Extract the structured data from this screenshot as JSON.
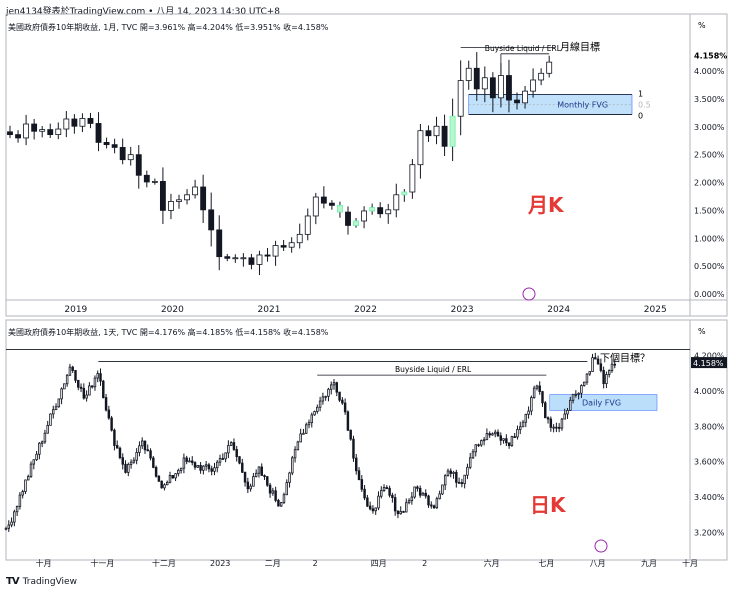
{
  "header": {
    "publisher": "jen4134發表於TradingView.com • 八月 14, 2023 14:30 UTC+8"
  },
  "footer": {
    "brand": "TradingView"
  },
  "colors": {
    "up": "#ffffff",
    "down": "#131722",
    "edge": "#131722",
    "fvg_fill": "#bbdefb",
    "fvg_edge": "#2962ff",
    "label_red": "#e53935",
    "mint": "#b9f6ca",
    "grid": "#e0e3eb",
    "axis_text": "#131722"
  },
  "chart_data": [
    {
      "type": "candlestick",
      "timeframe": "monthly",
      "legend": "美國政府債券10年期收益, 1月, TVC  開=3.961%  高=4.204%  低=3.951%  收=4.158%",
      "label": "月K",
      "percent_unit": "%",
      "ylim": [
        0,
        4.5
      ],
      "y_ticks": [
        "0.000%",
        "0.500%",
        "1.000%",
        "1.500%",
        "2.000%",
        "2.500%",
        "3.000%",
        "3.500%",
        "4.000%"
      ],
      "y_tick_values": [
        0,
        0.5,
        1.0,
        1.5,
        2.0,
        2.5,
        3.0,
        3.5,
        4.0
      ],
      "last_price": "4.158%",
      "last_value": 4.158,
      "x_ticks": [
        "2019",
        "2020",
        "2021",
        "2022",
        "2023",
        "2024",
        "2025"
      ],
      "x_tick_index": [
        8,
        20,
        32,
        44,
        56,
        68,
        80
      ],
      "closes": [
        2.86,
        2.8,
        3.05,
        2.92,
        2.95,
        2.86,
        2.96,
        3.14,
        3.01,
        3.15,
        3.06,
        2.72,
        2.68,
        2.63,
        2.41,
        2.5,
        2.13,
        2.01,
        2.02,
        1.5,
        1.66,
        1.69,
        1.78,
        1.92,
        1.51,
        1.15,
        0.67,
        0.64,
        0.65,
        0.65,
        0.53,
        0.7,
        0.68,
        0.87,
        0.84,
        0.92,
        1.07,
        1.4,
        1.74,
        1.63,
        1.59,
        1.47,
        1.23,
        1.31,
        1.49,
        1.55,
        1.44,
        1.51,
        1.78,
        1.83,
        2.32,
        2.93,
        2.84,
        3.01,
        2.65,
        3.19,
        3.83,
        4.05,
        3.68,
        3.88,
        3.52,
        3.92,
        3.48,
        3.43,
        3.64,
        3.84,
        3.96,
        4.16
      ],
      "max_index": 84,
      "annotations": {
        "buyside": "Buyside Liquid / ERL",
        "target": "月線目標",
        "fvg": "Monthly FVG",
        "fib_1": "1",
        "fib_05": "0.5",
        "fib_0": "0",
        "fvg_top": 3.58,
        "fvg_bottom": 3.22,
        "buyside_level": 4.31
      }
    },
    {
      "type": "candlestick",
      "timeframe": "daily",
      "legend": "美國政府債券10年期收益, 1天, TVC  開=4.176%  高=4.185%  低=4.158%  收=4.158%",
      "label": "日K",
      "percent_unit": "%",
      "ylim": [
        3.1,
        4.3
      ],
      "y_ticks": [
        "3.200%",
        "3.400%",
        "3.600%",
        "3.800%",
        "4.000%",
        "4.200%"
      ],
      "y_tick_values": [
        3.2,
        3.4,
        3.6,
        3.8,
        4.0,
        4.2
      ],
      "last_price": "4.158%",
      "last_value": 4.158,
      "x_ticks": [
        "十月",
        "十一月",
        "十二月",
        "2023",
        "二月",
        "2",
        "四月",
        "2",
        "六月",
        "七月",
        "八月",
        "九月",
        "十月"
      ],
      "x_tick_frac": [
        0.055,
        0.135,
        0.225,
        0.31,
        0.39,
        0.46,
        0.545,
        0.62,
        0.71,
        0.79,
        0.865,
        0.94,
        1.0
      ],
      "anchors": [
        [
          0,
          3.2
        ],
        [
          0.035,
          3.55
        ],
        [
          0.07,
          3.9
        ],
        [
          0.095,
          4.15
        ],
        [
          0.115,
          3.95
        ],
        [
          0.135,
          4.12
        ],
        [
          0.155,
          3.75
        ],
        [
          0.175,
          3.55
        ],
        [
          0.2,
          3.7
        ],
        [
          0.23,
          3.45
        ],
        [
          0.26,
          3.6
        ],
        [
          0.3,
          3.55
        ],
        [
          0.33,
          3.7
        ],
        [
          0.355,
          3.45
        ],
        [
          0.37,
          3.55
        ],
        [
          0.4,
          3.35
        ],
        [
          0.43,
          3.75
        ],
        [
          0.455,
          3.92
        ],
        [
          0.48,
          4.05
        ],
        [
          0.495,
          3.9
        ],
        [
          0.51,
          3.6
        ],
        [
          0.53,
          3.3
        ],
        [
          0.555,
          3.45
        ],
        [
          0.575,
          3.3
        ],
        [
          0.6,
          3.45
        ],
        [
          0.625,
          3.35
        ],
        [
          0.645,
          3.55
        ],
        [
          0.665,
          3.48
        ],
        [
          0.685,
          3.7
        ],
        [
          0.71,
          3.76
        ],
        [
          0.735,
          3.7
        ],
        [
          0.76,
          3.85
        ],
        [
          0.775,
          4.06
        ],
        [
          0.79,
          3.84
        ],
        [
          0.805,
          3.78
        ],
        [
          0.825,
          3.95
        ],
        [
          0.845,
          4.05
        ],
        [
          0.86,
          4.2
        ],
        [
          0.875,
          4.05
        ],
        [
          0.89,
          4.16
        ]
      ],
      "annotations": {
        "buyside": "Buyside Liquid / ERL",
        "target": "下個目標？",
        "fvg": "Daily FVG",
        "fvg_top": 3.98,
        "fvg_bottom": 3.89,
        "top_level": 4.19,
        "buyside_level": 4.09
      }
    }
  ]
}
